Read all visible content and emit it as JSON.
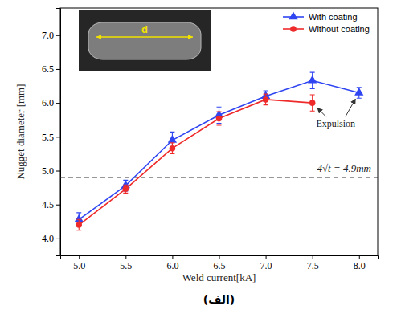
{
  "chart_data": {
    "type": "line",
    "x_label": "Weld current[kA]",
    "y_label": "Nugget diameter [mm]",
    "caption": "(الف)",
    "x": [
      5.0,
      5.5,
      6.0,
      6.5,
      7.0,
      7.5,
      8.0
    ],
    "xlim": [
      4.8,
      8.2
    ],
    "xticks": [
      {
        "value": 5,
        "label": "5.0"
      },
      {
        "value": 5.5,
        "label": "5.5"
      },
      {
        "value": 6,
        "label": "6.0"
      },
      {
        "value": 6.5,
        "label": "6.5"
      },
      {
        "value": 7,
        "label": "7.0"
      },
      {
        "value": 7.5,
        "label": "7.5"
      },
      {
        "value": 8,
        "label": "8.0"
      }
    ],
    "ylim": [
      3.75,
      7.4
    ],
    "yticks": [
      {
        "value": 4,
        "label": "4.0"
      },
      {
        "value": 4.5,
        "label": "4.5"
      },
      {
        "value": 5,
        "label": "5.0"
      },
      {
        "value": 5.5,
        "label": "5.5"
      },
      {
        "value": 6,
        "label": "6.0"
      },
      {
        "value": 6.5,
        "label": "6.5"
      },
      {
        "value": 7,
        "label": "7.0"
      }
    ],
    "series": [
      {
        "name": "With coating",
        "color": "#2f45f2",
        "marker": "triangle",
        "values": [
          4.28,
          4.78,
          5.45,
          5.82,
          6.1,
          6.33,
          6.15
        ],
        "errors": [
          0.1,
          0.08,
          0.12,
          0.12,
          0.08,
          0.12,
          0.08
        ]
      },
      {
        "name": "Without coating",
        "color": "#ee2a2a",
        "marker": "circle",
        "values": [
          4.2,
          4.73,
          5.33,
          5.77,
          6.05,
          6.0,
          null
        ],
        "errors": [
          0.08,
          0.06,
          0.08,
          0.1,
          0.08,
          0.12,
          null
        ]
      }
    ],
    "reference_line": {
      "value": 4.9,
      "label": "4√t = 4.9mm"
    },
    "annotations": [
      {
        "text": "Expulsion"
      }
    ],
    "inset_label": "d",
    "legend": "upper right",
    "grid": false
  }
}
